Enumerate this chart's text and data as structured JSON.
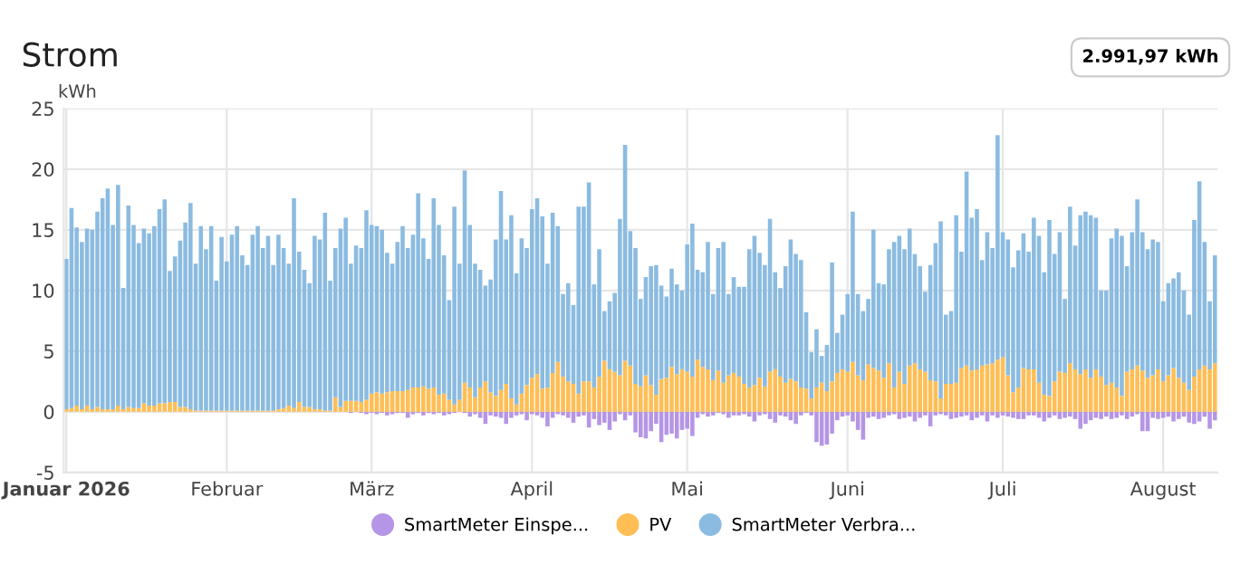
{
  "chart_data": {
    "type": "bar",
    "title": "Strom",
    "ylabel": "kWh",
    "stacked": true,
    "grid": true,
    "legend": "bottom",
    "annotations": [
      "2.991,97 kWh"
    ],
    "x": [
      "2026-01-01",
      "2026-01-02",
      "2026-01-03",
      "2026-01-04",
      "2026-01-05",
      "2026-01-06",
      "2026-01-07",
      "2026-01-08",
      "2026-01-09",
      "2026-01-10",
      "2026-01-11",
      "2026-01-12",
      "2026-01-13",
      "2026-01-14",
      "2026-01-15",
      "2026-01-16",
      "2026-01-17",
      "2026-01-18",
      "2026-01-19",
      "2026-01-20",
      "2026-01-21",
      "2026-01-22",
      "2026-01-23",
      "2026-01-24",
      "2026-01-25",
      "2026-01-26",
      "2026-01-27",
      "2026-01-28",
      "2026-01-29",
      "2026-01-30",
      "2026-01-31",
      "2026-02-01",
      "2026-02-02",
      "2026-02-03",
      "2026-02-04",
      "2026-02-05",
      "2026-02-06",
      "2026-02-07",
      "2026-02-08",
      "2026-02-09",
      "2026-02-10",
      "2026-02-11",
      "2026-02-12",
      "2026-02-13",
      "2026-02-14",
      "2026-02-15",
      "2026-02-16",
      "2026-02-17",
      "2026-02-18",
      "2026-02-19",
      "2026-02-20",
      "2026-02-21",
      "2026-02-22",
      "2026-02-23",
      "2026-02-24",
      "2026-02-25",
      "2026-02-26",
      "2026-02-27",
      "2026-02-28",
      "2026-03-01",
      "2026-03-02",
      "2026-03-03",
      "2026-03-04",
      "2026-03-05",
      "2026-03-06",
      "2026-03-07",
      "2026-03-08",
      "2026-03-09",
      "2026-03-10",
      "2026-03-11",
      "2026-03-12",
      "2026-03-13",
      "2026-03-14",
      "2026-03-15",
      "2026-03-16",
      "2026-03-17",
      "2026-03-18",
      "2026-03-19",
      "2026-03-20",
      "2026-03-21",
      "2026-03-22",
      "2026-03-23",
      "2026-03-24",
      "2026-03-25",
      "2026-03-26",
      "2026-03-27",
      "2026-03-28",
      "2026-03-29",
      "2026-03-30",
      "2026-03-31",
      "2026-04-01",
      "2026-04-02",
      "2026-04-03",
      "2026-04-04",
      "2026-04-05",
      "2026-04-06",
      "2026-04-07",
      "2026-04-08",
      "2026-04-09",
      "2026-04-10",
      "2026-04-11",
      "2026-04-12",
      "2026-04-13",
      "2026-04-14",
      "2026-04-15",
      "2026-04-16",
      "2026-04-17",
      "2026-04-18",
      "2026-04-19",
      "2026-04-20",
      "2026-04-21",
      "2026-04-22",
      "2026-04-23",
      "2026-04-24",
      "2026-04-25",
      "2026-04-26",
      "2026-04-27",
      "2026-04-28",
      "2026-04-29",
      "2026-04-30",
      "2026-05-01",
      "2026-05-02",
      "2026-05-03",
      "2026-05-04",
      "2026-05-05",
      "2026-05-06",
      "2026-05-07",
      "2026-05-08",
      "2026-05-09",
      "2026-05-10",
      "2026-05-11",
      "2026-05-12",
      "2026-05-13",
      "2026-05-14",
      "2026-05-15",
      "2026-05-16",
      "2026-05-17",
      "2026-05-18",
      "2026-05-19",
      "2026-05-20",
      "2026-05-21",
      "2026-05-22",
      "2026-05-23",
      "2026-05-24",
      "2026-05-25",
      "2026-05-26",
      "2026-05-27",
      "2026-05-28",
      "2026-05-29",
      "2026-05-30",
      "2026-05-31",
      "2026-06-01",
      "2026-06-02",
      "2026-06-03",
      "2026-06-04",
      "2026-06-05",
      "2026-06-06",
      "2026-06-07",
      "2026-06-08",
      "2026-06-09",
      "2026-06-10",
      "2026-06-11",
      "2026-06-12",
      "2026-06-13",
      "2026-06-14",
      "2026-06-15",
      "2026-06-16",
      "2026-06-17",
      "2026-06-18",
      "2026-06-19",
      "2026-06-20",
      "2026-06-21",
      "2026-06-22",
      "2026-06-23",
      "2026-06-24",
      "2026-06-25",
      "2026-06-26",
      "2026-06-27",
      "2026-06-28",
      "2026-06-29",
      "2026-06-30",
      "2026-07-01",
      "2026-07-02",
      "2026-07-03",
      "2026-07-04",
      "2026-07-05",
      "2026-07-06",
      "2026-07-07",
      "2026-07-08",
      "2026-07-09",
      "2026-07-10",
      "2026-07-11",
      "2026-07-12",
      "2026-07-13",
      "2026-07-14",
      "2026-07-15",
      "2026-07-16",
      "2026-07-17",
      "2026-07-18",
      "2026-07-19",
      "2026-07-20",
      "2026-07-21",
      "2026-07-22",
      "2026-07-23",
      "2026-07-24",
      "2026-07-25",
      "2026-07-26",
      "2026-07-27",
      "2026-07-28",
      "2026-07-29",
      "2026-07-30",
      "2026-07-31",
      "2026-08-01",
      "2026-08-02",
      "2026-08-03",
      "2026-08-04",
      "2026-08-05",
      "2026-08-06",
      "2026-08-07",
      "2026-08-08",
      "2026-08-09",
      "2026-08-10",
      "2026-08-11"
    ],
    "xlim": [
      "2025-12-31T12:00",
      "2026-08-11T12:00"
    ],
    "xticks": [
      {
        "value": "2026-01-01",
        "label": "Januar 2026"
      },
      {
        "value": "2026-02-01",
        "label": "Februar"
      },
      {
        "value": "2026-03-01",
        "label": "März"
      },
      {
        "value": "2026-04-01",
        "label": "April"
      },
      {
        "value": "2026-05-01",
        "label": "Mai"
      },
      {
        "value": "2026-06-01",
        "label": "Juni"
      },
      {
        "value": "2026-07-01",
        "label": "Juli"
      },
      {
        "value": "2026-08-01",
        "label": "August"
      }
    ],
    "ylim": [
      -5,
      25
    ],
    "yticks": [
      -5,
      0,
      5,
      10,
      15,
      20,
      25
    ],
    "series": [
      {
        "name": "SmartMeter Einspe...",
        "color": "#b595e5",
        "values": [
          0,
          0,
          0,
          0,
          0,
          0,
          0,
          0,
          0,
          0,
          0,
          0,
          0,
          0,
          0,
          0,
          0,
          0,
          0,
          0,
          0,
          0,
          0,
          0,
          0,
          0,
          0,
          0,
          0,
          0,
          0,
          0,
          0,
          0,
          0,
          0,
          0,
          0,
          0,
          0,
          0,
          0,
          0,
          0,
          0,
          0,
          0,
          0,
          0,
          0,
          0,
          0,
          0,
          0,
          0,
          -0.1,
          0,
          -0.1,
          -0.2,
          -0.1,
          -0.2,
          -0.1,
          -0.3,
          -0.2,
          -0.1,
          -0.1,
          -0.5,
          -0.2,
          -0.1,
          -0.3,
          -0.1,
          -0.2,
          -0.1,
          -0.3,
          -0.2,
          -0.1,
          0,
          -0.1,
          -0.4,
          -0.2,
          -0.5,
          -1.0,
          -0.3,
          -0.4,
          -0.5,
          -1.0,
          -0.5,
          -0.3,
          -0.2,
          -0.7,
          -0.2,
          -0.3,
          -0.5,
          -1.2,
          -0.5,
          -0.2,
          -0.3,
          -0.5,
          -0.9,
          -0.4,
          -0.3,
          -1.3,
          -0.6,
          -1.1,
          -0.9,
          -1.5,
          -0.8,
          -0.2,
          -0.7,
          -0.3,
          -1.7,
          -2.1,
          -2.2,
          -1.6,
          -1.0,
          -2.5,
          -1.9,
          -1.8,
          -2.2,
          -1.5,
          -1.4,
          -2.0,
          -0.5,
          -0.2,
          -0.4,
          -0.3,
          -0.1,
          -0.2,
          -0.5,
          -0.3,
          -0.3,
          -0.2,
          -0.4,
          -0.8,
          -0.3,
          -0.2,
          -0.6,
          -0.9,
          -0.3,
          -0.4,
          -0.7,
          -1.0,
          -0.3,
          -0.1,
          -0.3,
          -2.5,
          -2.8,
          -2.7,
          -1.8,
          -0.7,
          -0.4,
          -0.3,
          -0.8,
          -1.5,
          -2.3,
          -0.5,
          -0.4,
          -0.6,
          -0.5,
          -0.3,
          -0.2,
          -0.6,
          -0.5,
          -0.4,
          -0.8,
          -0.5,
          -0.3,
          -1.2,
          -0.3,
          -0.2,
          -0.3,
          -0.6,
          -0.5,
          -0.4,
          -0.3,
          -0.7,
          -0.5,
          -0.3,
          -0.8,
          -0.3,
          -0.5,
          -0.3,
          -0.4,
          -0.5,
          -0.6,
          -0.6,
          -0.3,
          -0.3,
          -0.5,
          -0.8,
          -0.5,
          -0.3,
          -0.6,
          -0.5,
          -0.4,
          -0.6,
          -1.4,
          -1.0,
          -0.7,
          -0.5,
          -0.6,
          -0.4,
          -0.6,
          -0.5,
          -0.3,
          -0.6,
          -0.4,
          -0.2,
          -1.6,
          -1.6,
          -0.5,
          -0.6,
          -0.5,
          -0.4,
          -0.8,
          -0.6,
          -0.4,
          -0.9,
          -1.0,
          -0.8,
          -0.4,
          -1.4,
          -0.7
        ]
      },
      {
        "name": "PV",
        "color": "#ffbe55",
        "values": [
          0.2,
          0.3,
          0.5,
          0.2,
          0.5,
          0.2,
          0.4,
          0.2,
          0.2,
          0.2,
          0.5,
          0.2,
          0.4,
          0.3,
          0.3,
          0.7,
          0.5,
          0.5,
          0.7,
          0.7,
          0.8,
          0.8,
          0.4,
          0.4,
          0.2,
          0.1,
          0.1,
          0.1,
          0.1,
          0.1,
          0.1,
          0.1,
          0.1,
          0.1,
          0.1,
          0.1,
          0.1,
          0.1,
          0.1,
          0.1,
          0.1,
          0.2,
          0.3,
          0.5,
          0.3,
          0.8,
          0.4,
          0.4,
          0.2,
          0.2,
          0.1,
          0.1,
          1.2,
          0.4,
          0.9,
          0.9,
          0.9,
          0.8,
          1.0,
          1.5,
          1.6,
          1.5,
          1.6,
          1.7,
          1.7,
          1.7,
          1.8,
          2.0,
          2.0,
          2.1,
          1.9,
          2.0,
          1.4,
          1.5,
          1.0,
          0.6,
          1.0,
          2.4,
          2.0,
          1.2,
          2.0,
          2.5,
          1.6,
          1.3,
          1.8,
          2.3,
          1.1,
          0.6,
          1.5,
          2.2,
          2.8,
          3.1,
          1.9,
          2.0,
          3.2,
          4.1,
          2.9,
          2.5,
          2.3,
          1.5,
          2.5,
          2.5,
          2.0,
          2.9,
          4.2,
          3.5,
          3.3,
          3.0,
          4.2,
          3.8,
          2.3,
          2.1,
          3.0,
          2.2,
          1.4,
          2.7,
          2.8,
          3.7,
          3.1,
          3.5,
          3.3,
          2.9,
          4.3,
          3.7,
          3.5,
          2.6,
          3.4,
          2.4,
          3.0,
          3.2,
          2.9,
          2.3,
          2.0,
          2.2,
          2.8,
          2.1,
          3.3,
          3.5,
          2.9,
          2.4,
          2.7,
          2.5,
          2.0,
          1.9,
          1.1,
          2.0,
          2.4,
          1.7,
          2.5,
          3.2,
          3.5,
          3.3,
          4.1,
          3.0,
          2.6,
          3.9,
          3.6,
          3.4,
          2.8,
          4.0,
          2.0,
          3.3,
          2.3,
          3.8,
          4.0,
          3.5,
          3.3,
          2.6,
          2.5,
          1.1,
          2.3,
          2.3,
          2.4,
          3.6,
          3.8,
          3.4,
          3.5,
          3.8,
          3.9,
          4.0,
          4.3,
          4.5,
          3.0,
          1.6,
          2.0,
          3.6,
          3.5,
          3.5,
          2.4,
          1.4,
          1.3,
          2.5,
          3.3,
          3.2,
          4.0,
          3.5,
          3.1,
          3.5,
          2.8,
          3.5,
          2.9,
          2.2,
          2.4,
          2.0,
          1.3,
          3.3,
          3.5,
          3.8,
          3.4,
          2.8,
          3.0,
          3.5,
          2.5,
          3.0,
          3.6,
          2.8,
          2.4,
          1.8,
          2.9,
          3.5,
          3.8,
          3.5,
          4.0
        ]
      },
      {
        "name": "SmartMeter Verbra...",
        "color": "#8bbbe0",
        "values": [
          12.4,
          16.5,
          14.7,
          13.8,
          14.6,
          14.8,
          16.1,
          17.4,
          18.2,
          15.2,
          18.2,
          10.0,
          16.6,
          15.1,
          13.6,
          14.4,
          14.2,
          14.8,
          16.0,
          16.8,
          10.8,
          12.0,
          13.7,
          15.2,
          17.0,
          12.1,
          15.2,
          13.3,
          15.2,
          10.7,
          14.3,
          12.3,
          14.5,
          15.2,
          12.8,
          12.0,
          14.5,
          15.2,
          13.4,
          14.4,
          12.0,
          14.4,
          13.2,
          11.7,
          17.3,
          12.4,
          11.3,
          10.2,
          14.3,
          14.0,
          16.3,
          10.7,
          12.3,
          14.7,
          15.1,
          11.3,
          12.8,
          12.7,
          15.6,
          13.9,
          13.7,
          13.5,
          11.5,
          10.5,
          12.3,
          13.6,
          11.7,
          12.6,
          16.0,
          12.2,
          10.7,
          15.6,
          14.0,
          11.4,
          8.2,
          16.3,
          11.2,
          17.5,
          13.4,
          11.0,
          9.7,
          7.9,
          9.3,
          12.9,
          16.4,
          11.9,
          15.1,
          10.8,
          12.8,
          11.3,
          13.9,
          14.5,
          14.2,
          10.2,
          13.2,
          11.2,
          6.8,
          8.1,
          6.5,
          15.4,
          14.4,
          16.4,
          8.5,
          10.5,
          4.1,
          5.6,
          6.5,
          12.9,
          17.8,
          11.1,
          11.2,
          7.2,
          8.1,
          9.8,
          10.7,
          7.7,
          6.7,
          8.1,
          7.4,
          6.5,
          10.5,
          12.6,
          7.4,
          7.8,
          10.5,
          7.1,
          10.1,
          11.6,
          6.7,
          7.9,
          7.4,
          8.0,
          11.4,
          12.3,
          10.3,
          10.0,
          12.6,
          8.0,
          7.3,
          9.6,
          11.5,
          10.5,
          10.5,
          6.3,
          3.8,
          4.8,
          2.2,
          3.8,
          9.8,
          3.3,
          4.5,
          6.4,
          12.4,
          6.7,
          5.7,
          5.4,
          11.4,
          7.2,
          7.7,
          9.4,
          12.0,
          11.2,
          11.1,
          11.3,
          9.0,
          8.5,
          6.6,
          9.5,
          11.4,
          14.6,
          5.7,
          6.0,
          13.8,
          9.6,
          16.0,
          12.6,
          13.2,
          8.7,
          10.9,
          9.5,
          18.5,
          10.3,
          11.2,
          10.3,
          11.3,
          11.1,
          9.7,
          12.5,
          12.1,
          10.1,
          14.5,
          10.5,
          11.5,
          6.1,
          12.9,
          10.2,
          13.1,
          13.0,
          13.4,
          12.5,
          7.1,
          7.8,
          11.9,
          13.1,
          13.2,
          8.7,
          11.3,
          13.7,
          11.4,
          10.6,
          11.2,
          10.5,
          6.6,
          7.6,
          7.4,
          8.7,
          7.6,
          6.2,
          12.9,
          15.5,
          10.2,
          5.6,
          8.9
        ]
      }
    ]
  }
}
